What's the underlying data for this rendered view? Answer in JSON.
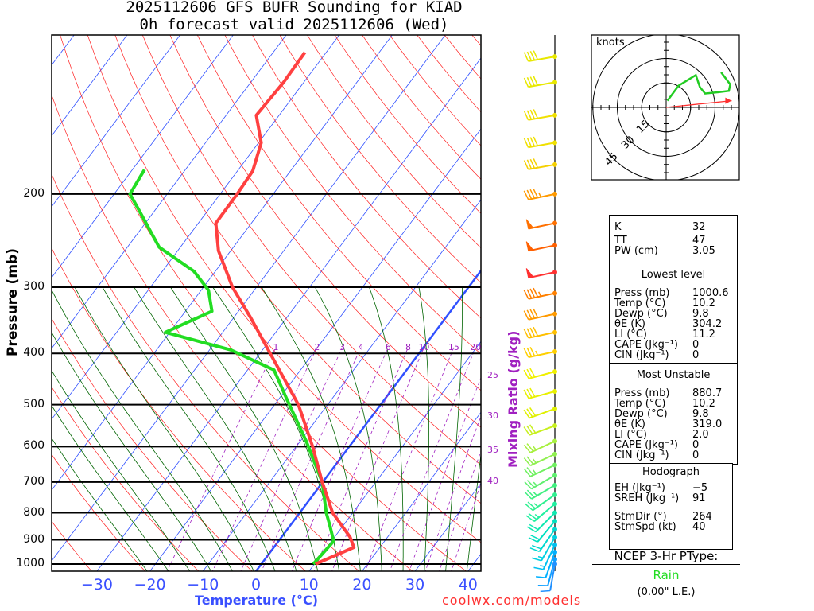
{
  "header": {
    "title_line1": "2025112606 GFS BUFR Sounding for KIAD",
    "title_line2": "0h forecast valid 2025112606 (Wed)"
  },
  "chart_data": {
    "type": "skew-t",
    "ylabel": "Pressure (mb)",
    "xlabel": "Temperature (°C)",
    "mixing_ratio_label": "Mixing Ratio (g/kg)",
    "pressure_ticks": [
      1000,
      900,
      800,
      700,
      600,
      500,
      400,
      300,
      200
    ],
    "temperature_ticks": [
      -30,
      -20,
      -10,
      0,
      10,
      20,
      30,
      40
    ],
    "temperature_tick_labels": [
      "−30",
      "−20",
      "−10",
      "0",
      "10",
      "20",
      "30",
      "40"
    ],
    "pressure_range": [
      1031,
      100
    ],
    "mixing_ratio_lines": [
      1,
      2,
      3,
      4,
      6,
      8,
      10,
      15,
      20,
      25,
      30,
      35,
      40
    ],
    "temperature_profile": [
      [
        1000,
        10.2
      ],
      [
        930,
        15.1
      ],
      [
        889,
        12.9
      ],
      [
        800,
        6.2
      ],
      [
        700,
        -0.1
      ],
      [
        600,
        -6.9
      ],
      [
        500,
        -15.5
      ],
      [
        415,
        -26
      ],
      [
        343,
        -36.7
      ],
      [
        300,
        -44.5
      ],
      [
        256,
        -52.3
      ],
      [
        227,
        -56.7
      ],
      [
        200,
        -56.8
      ],
      [
        181,
        -57.1
      ],
      [
        160,
        -59.5
      ],
      [
        142,
        -64.3
      ],
      [
        123,
        -63.8
      ],
      [
        108,
        -64
      ]
    ],
    "dewpoint_profile": [
      [
        1000,
        9.8
      ],
      [
        905,
        10.4
      ],
      [
        844,
        7.4
      ],
      [
        800,
        5.0
      ],
      [
        700,
        -0.1
      ],
      [
        587,
        -8.8
      ],
      [
        485,
        -18.8
      ],
      [
        430,
        -25
      ],
      [
        394,
        -36
      ],
      [
        365,
        -50.8
      ],
      [
        333,
        -45
      ],
      [
        304,
        -48.6
      ],
      [
        280,
        -54
      ],
      [
        252,
        -64
      ],
      [
        215,
        -72.9
      ],
      [
        200,
        -77
      ],
      [
        180,
        -77.7
      ]
    ],
    "wind_barbs": [
      {
        "p": 110,
        "dir": 260,
        "spd": 40,
        "color": "#e8e800"
      },
      {
        "p": 123,
        "dir": 260,
        "spd": 40,
        "color": "#e8e800"
      },
      {
        "p": 142,
        "dir": 260,
        "spd": 40,
        "color": "#f0e000"
      },
      {
        "p": 160,
        "dir": 260,
        "spd": 40,
        "color": "#f0e000"
      },
      {
        "p": 176,
        "dir": 260,
        "spd": 40,
        "color": "#f5d000"
      },
      {
        "p": 200,
        "dir": 258,
        "spd": 45,
        "color": "#ff9a00"
      },
      {
        "p": 227,
        "dir": 258,
        "spd": 50,
        "color": "#ff7000"
      },
      {
        "p": 250,
        "dir": 258,
        "spd": 50,
        "color": "#ff6000"
      },
      {
        "p": 281,
        "dir": 258,
        "spd": 50,
        "color": "#ff3030"
      },
      {
        "p": 308,
        "dir": 258,
        "spd": 45,
        "color": "#ff8000"
      },
      {
        "p": 337,
        "dir": 258,
        "spd": 40,
        "color": "#ff9a00"
      },
      {
        "p": 365,
        "dir": 258,
        "spd": 40,
        "color": "#ffc000"
      },
      {
        "p": 397,
        "dir": 258,
        "spd": 35,
        "color": "#ffd000"
      },
      {
        "p": 433,
        "dir": 255,
        "spd": 30,
        "color": "#f0f000"
      },
      {
        "p": 472,
        "dir": 255,
        "spd": 30,
        "color": "#e8f000"
      },
      {
        "p": 509,
        "dir": 250,
        "spd": 30,
        "color": "#e0f000"
      },
      {
        "p": 548,
        "dir": 250,
        "spd": 30,
        "color": "#c8f020"
      },
      {
        "p": 586,
        "dir": 245,
        "spd": 25,
        "color": "#a8f040"
      },
      {
        "p": 620,
        "dir": 245,
        "spd": 25,
        "color": "#90f050"
      },
      {
        "p": 650,
        "dir": 245,
        "spd": 25,
        "color": "#70f060"
      },
      {
        "p": 680,
        "dir": 240,
        "spd": 25,
        "color": "#60f070"
      },
      {
        "p": 710,
        "dir": 240,
        "spd": 25,
        "color": "#40f080"
      },
      {
        "p": 740,
        "dir": 235,
        "spd": 25,
        "color": "#30f090"
      },
      {
        "p": 770,
        "dir": 230,
        "spd": 25,
        "color": "#20f0a0"
      },
      {
        "p": 800,
        "dir": 225,
        "spd": 20,
        "color": "#10e8b0"
      },
      {
        "p": 830,
        "dir": 220,
        "spd": 20,
        "color": "#00e0c0"
      },
      {
        "p": 860,
        "dir": 215,
        "spd": 20,
        "color": "#00d8d0"
      },
      {
        "p": 890,
        "dir": 210,
        "spd": 15,
        "color": "#00d0e0"
      },
      {
        "p": 920,
        "dir": 205,
        "spd": 15,
        "color": "#00c0f0"
      },
      {
        "p": 950,
        "dir": 200,
        "spd": 10,
        "color": "#00b0ff"
      },
      {
        "p": 980,
        "dir": 195,
        "spd": 10,
        "color": "#10a0ff"
      },
      {
        "p": 1000,
        "dir": 190,
        "spd": 10,
        "color": "#2090ff"
      }
    ],
    "hodograph": {
      "units_label": "knots",
      "ring_labels": [
        "15",
        "30",
        "45"
      ],
      "rings": [
        15,
        30,
        45
      ],
      "uv": [
        [
          0.8,
          4.1
        ],
        [
          7.6,
          13.3
        ],
        [
          18.2,
          19.8
        ],
        [
          20.7,
          12.5
        ],
        [
          23.9,
          8.5
        ],
        [
          32,
          9.3
        ],
        [
          38.5,
          10.1
        ],
        [
          39.3,
          14.1
        ],
        [
          33.7,
          21.5
        ]
      ],
      "storm_motion": [
        40.2,
        4.1
      ]
    }
  },
  "indices": {
    "rows": [
      {
        "k": "K",
        "v": "32"
      },
      {
        "k": "TT",
        "v": "47"
      },
      {
        "k": "PW (cm)",
        "v": "3.05"
      }
    ],
    "lowest": {
      "title": "Lowest level",
      "rows": [
        {
          "k": "Press (mb)",
          "v": "1000.6"
        },
        {
          "k": "Temp (°C)",
          "v": "10.2"
        },
        {
          "k": "Dewp (°C)",
          "v": "9.8"
        },
        {
          "k": "θE (K)",
          "v": "304.2"
        },
        {
          "k": "LI (°C)",
          "v": "11.2"
        },
        {
          "k": "CAPE (Jkg⁻¹)",
          "v": "0"
        },
        {
          "k": "CIN (Jkg⁻¹)",
          "v": "0"
        }
      ]
    },
    "unstable": {
      "title": "Most Unstable",
      "rows": [
        {
          "k": "Press (mb)",
          "v": "880.7"
        },
        {
          "k": "Temp (°C)",
          "v": "10.2"
        },
        {
          "k": "Dewp (°C)",
          "v": "9.8"
        },
        {
          "k": "θE (K)",
          "v": "319.0"
        },
        {
          "k": "LI (°C)",
          "v": "2.0"
        },
        {
          "k": "CAPE (Jkg⁻¹)",
          "v": "0"
        },
        {
          "k": "CIN (Jkg⁻¹)",
          "v": "0"
        }
      ]
    },
    "hodo": {
      "title": "Hodograph",
      "rows": [
        {
          "k": "EH (Jkg⁻¹)",
          "v": "−5"
        },
        {
          "k": "SREH (Jkg⁻¹)",
          "v": "91"
        },
        {
          "k": "StmDir (°)",
          "v": "264"
        },
        {
          "k": "StmSpd (kt)",
          "v": "40"
        }
      ]
    }
  },
  "ptype": {
    "title": "NCEP 3-Hr PType:",
    "value": "Rain",
    "value_color": "#22dd22",
    "le": "(0.00\" L.E.)"
  },
  "footer": {
    "credit": "coolwx.com/models"
  },
  "colors": {
    "temp": "#ff4040",
    "dew": "#22dd22",
    "isotherm": "#3050ff",
    "dry": "#ff2020",
    "moist": "#006400",
    "mixing": "#a020c0"
  }
}
